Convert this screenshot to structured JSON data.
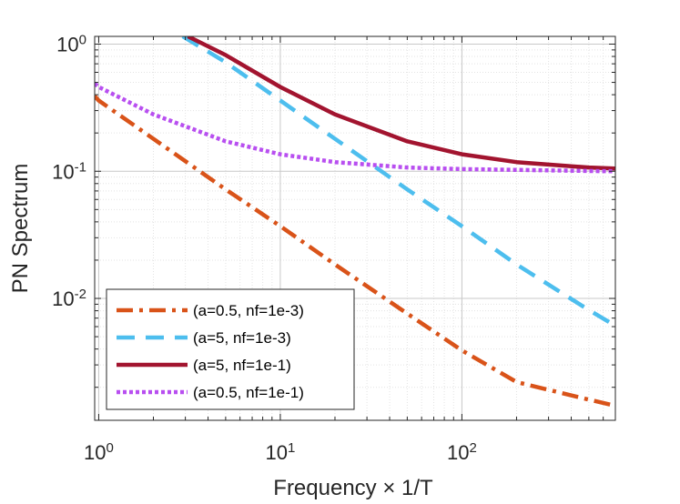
{
  "chart_data": {
    "type": "line",
    "scale": {
      "x": "log",
      "y": "log"
    },
    "xlabel": "Frequency × 1/T",
    "ylabel": "PN Spectrum",
    "xlim": [
      0.95,
      700
    ],
    "ylim": [
      0.0011,
      1.15
    ],
    "grid": true,
    "x_ticks": [
      {
        "value": 1,
        "base": "10",
        "exp": "0"
      },
      {
        "value": 10,
        "base": "10",
        "exp": "1"
      },
      {
        "value": 100,
        "base": "10",
        "exp": "2"
      }
    ],
    "y_ticks": [
      {
        "value": 1,
        "base": "10",
        "exp": "0"
      },
      {
        "value": 0.1,
        "base": "10",
        "exp": "-1"
      },
      {
        "value": 0.01,
        "base": "10",
        "exp": "-2"
      }
    ],
    "legend_position": "bottom-left",
    "series": [
      {
        "name": "(a=0.5, nf=1e-3)",
        "a": 0.5,
        "nf": 0.001,
        "color": "#D95319",
        "style": "dashdot",
        "x": [
          0.95,
          1,
          2,
          5,
          10,
          20,
          50,
          100,
          200,
          500,
          700
        ],
        "y": [
          0.39,
          0.36,
          0.18,
          0.072,
          0.037,
          0.0185,
          0.0076,
          0.0039,
          0.0022,
          0.0016,
          0.00143
        ]
      },
      {
        "name": "(a=5, nf=1e-3)",
        "a": 5,
        "nf": 0.001,
        "color": "#4DBEEE",
        "style": "dashed",
        "x": [
          2.9,
          5,
          10,
          20,
          50,
          100,
          200,
          500,
          700
        ],
        "y": [
          1.15,
          0.72,
          0.36,
          0.18,
          0.072,
          0.037,
          0.0185,
          0.0081,
          0.0061
        ]
      },
      {
        "name": "(a=5, nf=1e-1)",
        "a": 5,
        "nf": 0.1,
        "color": "#A2142F",
        "style": "solid",
        "x": [
          3.1,
          5,
          10,
          20,
          50,
          100,
          200,
          500,
          700
        ],
        "y": [
          1.15,
          0.82,
          0.46,
          0.28,
          0.172,
          0.136,
          0.118,
          0.107,
          0.105
        ]
      },
      {
        "name": "(a=0.5, nf=1e-1)",
        "a": 0.5,
        "nf": 0.1,
        "color": "#B84FF0",
        "style": "dotted",
        "x": [
          0.95,
          1,
          2,
          5,
          10,
          20,
          50,
          100,
          200,
          500,
          700
        ],
        "y": [
          0.49,
          0.46,
          0.28,
          0.172,
          0.136,
          0.118,
          0.107,
          0.104,
          0.1025,
          0.1005,
          0.1
        ]
      }
    ]
  }
}
